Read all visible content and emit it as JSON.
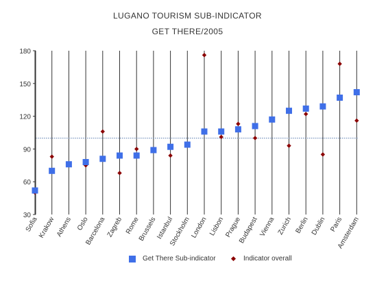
{
  "chart_data": {
    "type": "scatter",
    "title": "LUGANO TOURISM SUB-INDICATOR",
    "subtitle": "GET THERE/2005",
    "xlabel": "",
    "ylabel": "",
    "categories": [
      "Sofia",
      "Krakow",
      "Athens",
      "Oslo",
      "Barcelona",
      "Zagreb",
      "Rome",
      "Brussels",
      "Istanbul",
      "Stockholm",
      "London",
      "Lisbon",
      "Prague",
      "Budapest",
      "Vienna",
      "Zurich",
      "Berlin",
      "Dublin",
      "Paris",
      "Amsterdam"
    ],
    "ylim": [
      30,
      180
    ],
    "yticks": [
      30,
      60,
      90,
      120,
      150,
      180
    ],
    "reference_line": 100,
    "grid": false,
    "legend_position": "bottom",
    "series": [
      {
        "name": "Get There Sub-indicator",
        "marker": "square",
        "color": "#3f6fe8",
        "values": [
          52,
          70,
          76,
          78,
          81,
          84,
          84,
          89,
          92,
          94,
          106,
          106,
          108,
          111,
          117,
          125,
          127,
          129,
          137,
          142
        ]
      },
      {
        "name": "Indicator overall",
        "marker": "diamond",
        "color": "#8b0000",
        "values": [
          50,
          83,
          null,
          75,
          106,
          68,
          90,
          null,
          84,
          95,
          176,
          101,
          113,
          100,
          null,
          93,
          122,
          85,
          168,
          116
        ]
      }
    ]
  }
}
